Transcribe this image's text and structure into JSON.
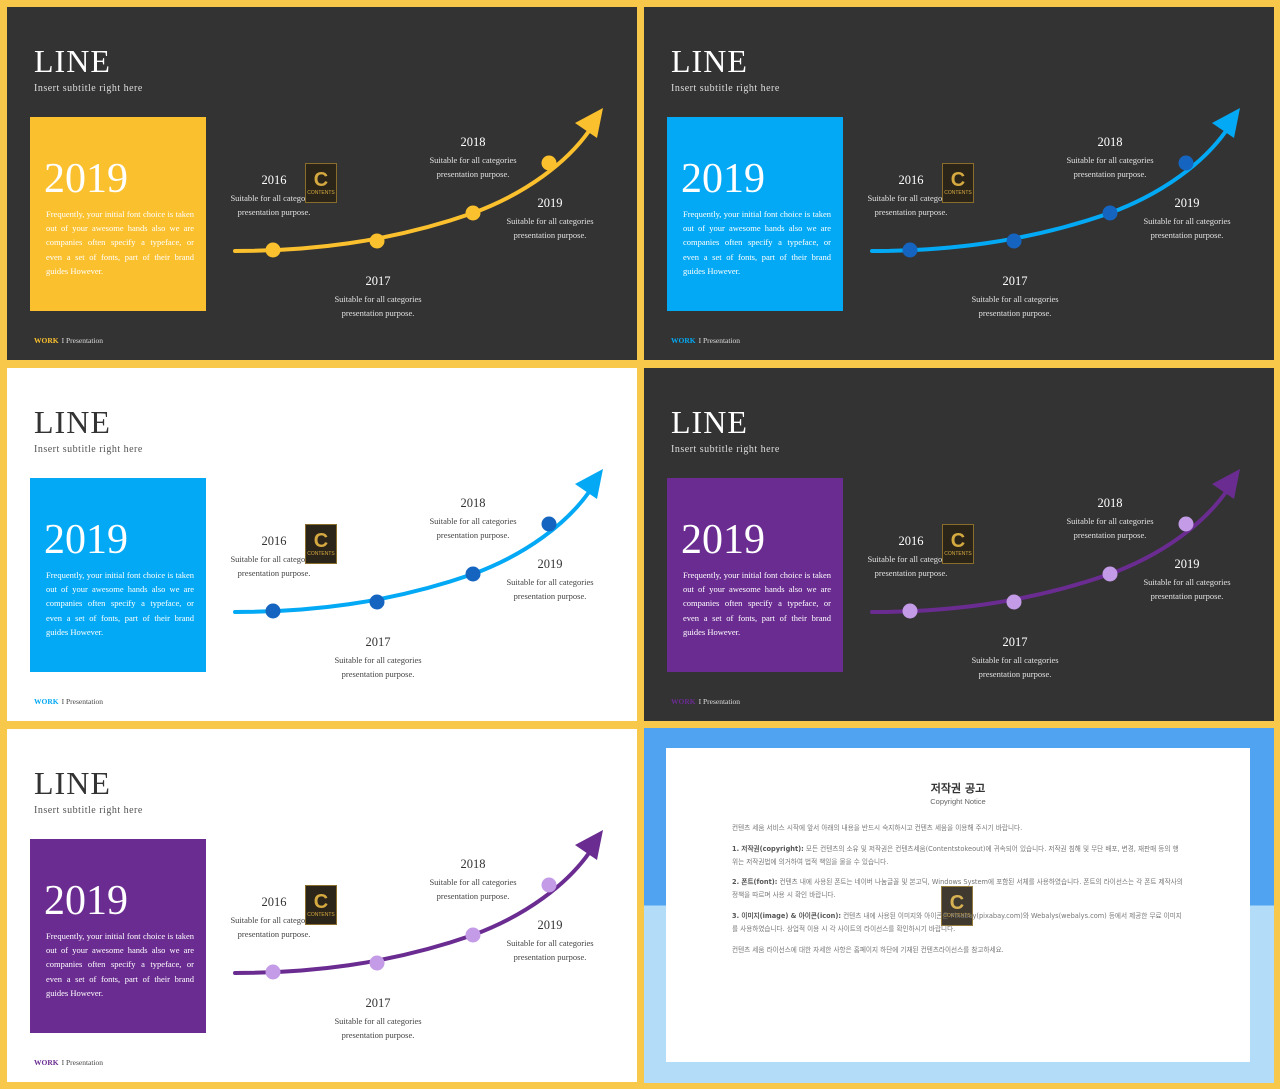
{
  "common": {
    "title": "LINE",
    "subtitle": "Insert  subtitle  right here",
    "year": "2019",
    "box_text": "Frequently,  your initial font choice  is taken out of your awesome  hands also we are companies  often specify  a typeface,  or even  a set of fonts,  part of their brand guides However.",
    "footer_work": "WORK",
    "footer_rest": "I Presentation",
    "milestones": [
      {
        "year": "2016",
        "line1": "Suitable for all categories",
        "line2": "presentation  purpose."
      },
      {
        "year": "2017",
        "line1": "Suitable for all categories",
        "line2": "presentation  purpose."
      },
      {
        "year": "2018",
        "line1": "Suitable for all categories",
        "line2": "presentation  purpose."
      },
      {
        "year": "2019",
        "line1": "Suitable for all categories",
        "line2": "presentation  purpose."
      }
    ],
    "logo_letter": "C",
    "logo_text": "CONTENTS"
  },
  "slides": [
    {
      "theme": "dark",
      "accent": "#fbc02d",
      "dot": "#fbc02d"
    },
    {
      "theme": "dark",
      "accent": "#03a9f4",
      "dot": "#1565c0"
    },
    {
      "theme": "light",
      "accent": "#03a9f4",
      "dot": "#1565c0"
    },
    {
      "theme": "dark",
      "accent": "#6a2c91",
      "dot": "#c39be6"
    },
    {
      "theme": "light",
      "accent": "#6a2c91",
      "dot": "#c39be6"
    }
  ],
  "notice": {
    "title": "저작권 공고",
    "subtitle": "Copyright Notice",
    "intro": "컨텐츠 세움 서비스 시작에 앞서 아래의 내용을 반드시 숙지하시고 컨텐츠 세움을 이용해 주시기 바랍니다.",
    "p1_head": "1. 저작권(copyright):",
    "p1": "모든 컨텐츠의 소유 및 저작권은 컨텐츠세움(Contentstokeout)에 귀속되어 있습니다. 저작권 침해 및 무단 배포, 변경, 재판매 등의 행위는 저작권법에 의거하여 법적 책임을 물을 수 있습니다.",
    "p2_head": "2. 폰트(font):",
    "p2": "컨텐츠 내에 사용된 폰트는 네이버 나눔글꼴 및 본고딕, Windows System에 포함된 서체를 사용하였습니다. 폰트의 라이선스는 각 폰트 제작사의 정책을 따르며 사용 시 확인 바랍니다.",
    "p3_head": "3. 이미지(image) & 아이콘(icon):",
    "p3": "컨텐츠 내에 사용된 이미지와 아이콘은 Pixabay(pixabay.com)와 Webalys(webalys.com) 등에서 제공한 무료 이미지를 사용하였습니다. 상업적 이용 시 각 사이트의 라이선스를 확인하시기 바랍니다.",
    "outro": "컨텐츠 세움 라이선스에 대한 자세한 사항은 홈페이지 하단에 기재된 컨텐츠라이선스를 참고하세요."
  }
}
